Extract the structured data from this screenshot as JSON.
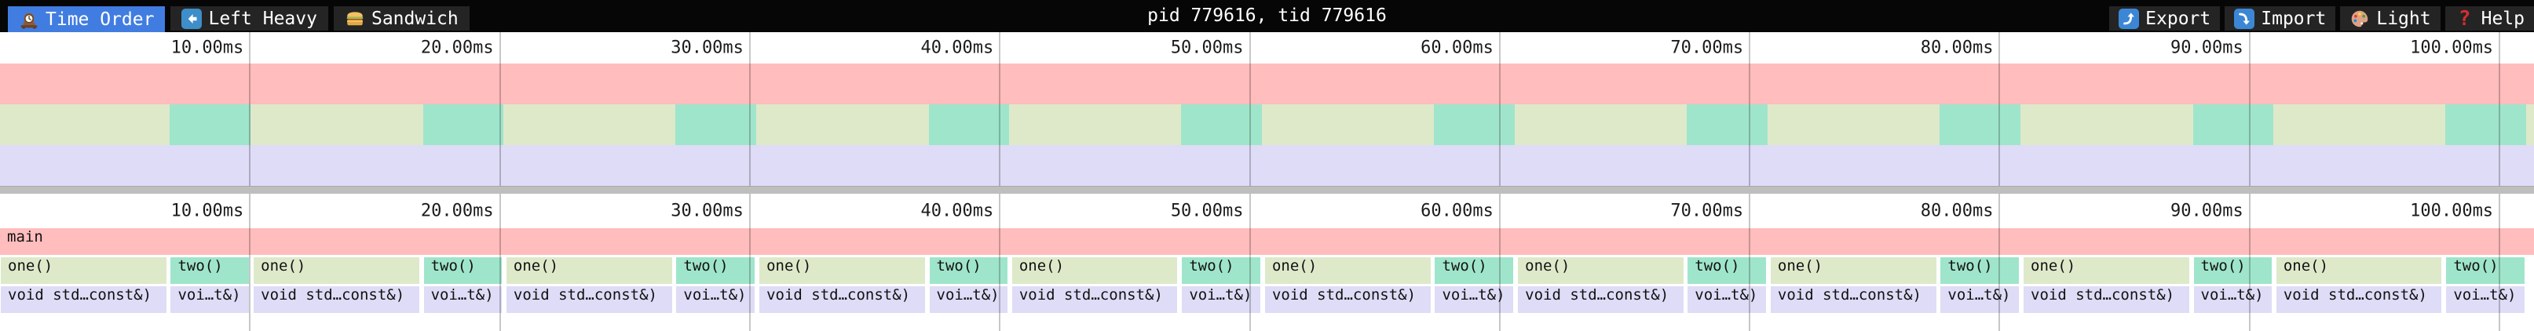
{
  "toolbar": {
    "tabs": [
      {
        "label": "Time Order",
        "icon": "clock-icon",
        "active": true
      },
      {
        "label": "Left Heavy",
        "icon": "left-arrow-icon",
        "active": false
      },
      {
        "label": "Sandwich",
        "icon": "sandwich-icon",
        "active": false
      }
    ],
    "title": "pid 779616, tid 779616",
    "buttons": [
      {
        "label": "Export",
        "icon": "export-icon"
      },
      {
        "label": "Import",
        "icon": "import-icon"
      },
      {
        "label": "Light",
        "icon": "palette-icon"
      },
      {
        "label": "Help",
        "icon": "help-icon"
      }
    ]
  },
  "colors": {
    "toolbar_bg": "#060606",
    "tab_bg": "#242424",
    "active_tab_blue": "#417de1",
    "icon_blue": "#3d8ec9",
    "frame_main_pink": "#ffbdbd",
    "frame_one_green": "#dee9ca",
    "frame_two_teal": "#9fe5cb",
    "frame_child_lavender": "#dedcf6",
    "divider_gray": "#bebebe",
    "help_red": "#d32f2f"
  },
  "chart_data": {
    "type": "flamegraph",
    "total_ms": 101.38,
    "tick_interval_ms": 10,
    "ticks": [
      {
        "ms": 10,
        "label": "10.00ms"
      },
      {
        "ms": 20,
        "label": "20.00ms"
      },
      {
        "ms": 30,
        "label": "30.00ms"
      },
      {
        "ms": 40,
        "label": "40.00ms"
      },
      {
        "ms": 50,
        "label": "50.00ms"
      },
      {
        "ms": 60,
        "label": "60.00ms"
      },
      {
        "ms": 70,
        "label": "70.00ms"
      },
      {
        "ms": 80,
        "label": "80.00ms"
      },
      {
        "ms": 90,
        "label": "90.00ms"
      },
      {
        "ms": 100,
        "label": "100.00ms"
      }
    ],
    "root_frame": {
      "label": "main",
      "start_ms": 0,
      "end_ms": 101.38
    },
    "frame_labels": {
      "one": "one()",
      "two": "two()",
      "one_child": "void std…const&)",
      "two_child": "voi…t&)"
    },
    "cycles": [
      {
        "one_start": 0.0,
        "one_end": 6.71,
        "two_start": 6.8,
        "two_end": 10.03
      },
      {
        "one_start": 10.12,
        "one_end": 16.83,
        "two_start": 16.92,
        "two_end": 20.15
      },
      {
        "one_start": 20.23,
        "one_end": 26.94,
        "two_start": 27.03,
        "two_end": 30.26
      },
      {
        "one_start": 30.35,
        "one_end": 37.06,
        "two_start": 37.15,
        "two_end": 40.38
      },
      {
        "one_start": 40.46,
        "one_end": 47.17,
        "two_start": 47.26,
        "two_end": 50.49
      },
      {
        "one_start": 50.58,
        "one_end": 57.29,
        "two_start": 57.38,
        "two_end": 60.61
      },
      {
        "one_start": 60.7,
        "one_end": 67.41,
        "two_start": 67.49,
        "two_end": 70.73
      },
      {
        "one_start": 70.81,
        "one_end": 77.52,
        "two_start": 77.61,
        "two_end": 80.84
      },
      {
        "one_start": 80.93,
        "one_end": 87.64,
        "two_start": 87.73,
        "two_end": 90.96
      },
      {
        "one_start": 91.04,
        "one_end": 97.75,
        "two_start": 97.84,
        "two_end": 101.07
      }
    ]
  }
}
